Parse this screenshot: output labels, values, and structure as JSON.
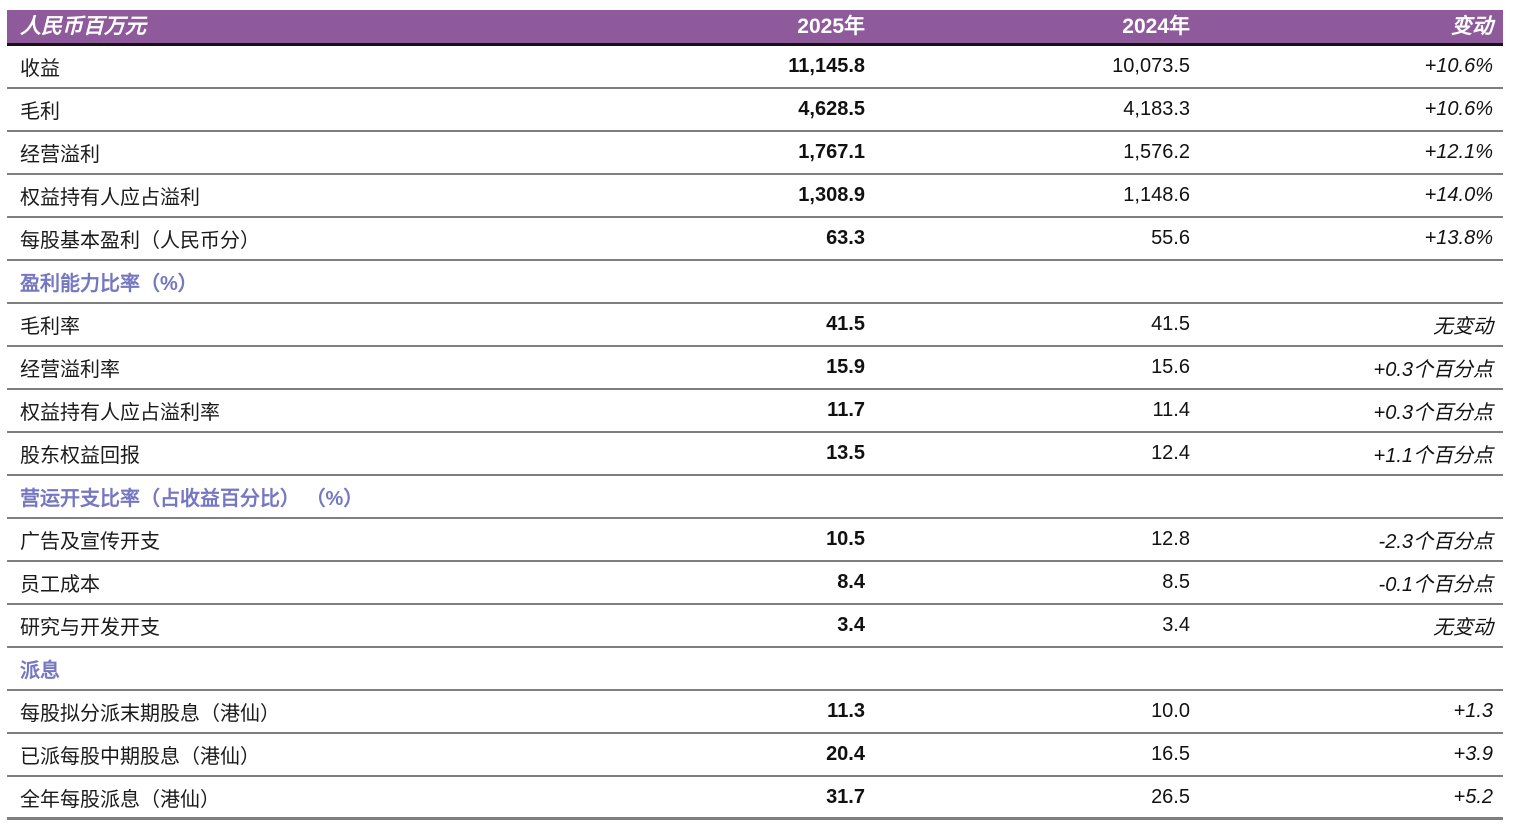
{
  "colors": {
    "header_bg": "#8e5a9b",
    "header_text": "#ffffff",
    "section_text": "#7577c1",
    "row_separator": "#7f7f7f",
    "header_underline": "#141414",
    "body_text": "#1a1a1a"
  },
  "table": {
    "header": {
      "title": "人民币百万元",
      "col2025": "2025年",
      "col2024": "2024年",
      "change": "变动"
    },
    "rows": [
      {
        "type": "data",
        "label": "收益",
        "v2025": "11,145.8",
        "v2024": "10,073.5",
        "change": "+10.6%"
      },
      {
        "type": "data",
        "label": "毛利",
        "v2025": "4,628.5",
        "v2024": "4,183.3",
        "change": "+10.6%"
      },
      {
        "type": "data",
        "label": "经营溢利",
        "v2025": "1,767.1",
        "v2024": "1,576.2",
        "change": "+12.1%"
      },
      {
        "type": "data",
        "label": "权益持有人应占溢利",
        "v2025": "1,308.9",
        "v2024": "1,148.6",
        "change": "+14.0%"
      },
      {
        "type": "data",
        "label": "每股基本盈利（人民币分）",
        "v2025": "63.3",
        "v2024": "55.6",
        "change": "+13.8%"
      },
      {
        "type": "section",
        "label": "盈利能力比率（%）",
        "v2025": "",
        "v2024": "",
        "change": ""
      },
      {
        "type": "data",
        "label": "毛利率",
        "v2025": "41.5",
        "v2024": "41.5",
        "change": "无变动"
      },
      {
        "type": "data",
        "label": "经营溢利率",
        "v2025": "15.9",
        "v2024": "15.6",
        "change": "+0.3个百分点"
      },
      {
        "type": "data",
        "label": "权益持有人应占溢利率",
        "v2025": "11.7",
        "v2024": "11.4",
        "change": "+0.3个百分点"
      },
      {
        "type": "data",
        "label": "股东权益回报",
        "v2025": "13.5",
        "v2024": "12.4",
        "change": "+1.1个百分点"
      },
      {
        "type": "section",
        "label": "营运开支比率（占收益百分比） （%）",
        "v2025": "",
        "v2024": "",
        "change": ""
      },
      {
        "type": "data",
        "label": "广告及宣传开支",
        "v2025": "10.5",
        "v2024": "12.8",
        "change": "-2.3个百分点"
      },
      {
        "type": "data",
        "label": "员工成本",
        "v2025": "8.4",
        "v2024": "8.5",
        "change": "-0.1个百分点"
      },
      {
        "type": "data",
        "label": "研究与开发开支",
        "v2025": "3.4",
        "v2024": "3.4",
        "change": "无变动"
      },
      {
        "type": "section",
        "label": "派息",
        "v2025": "",
        "v2024": "",
        "change": ""
      },
      {
        "type": "data",
        "label": "每股拟分派末期股息（港仙）",
        "v2025": "11.3",
        "v2024": "10.0",
        "change": "+1.3"
      },
      {
        "type": "data",
        "label": "已派每股中期股息（港仙）",
        "v2025": "20.4",
        "v2024": "16.5",
        "change": "+3.9"
      },
      {
        "type": "data",
        "label": "全年每股派息（港仙）",
        "v2025": "31.7",
        "v2024": "26.5",
        "change": "+5.2"
      }
    ]
  }
}
